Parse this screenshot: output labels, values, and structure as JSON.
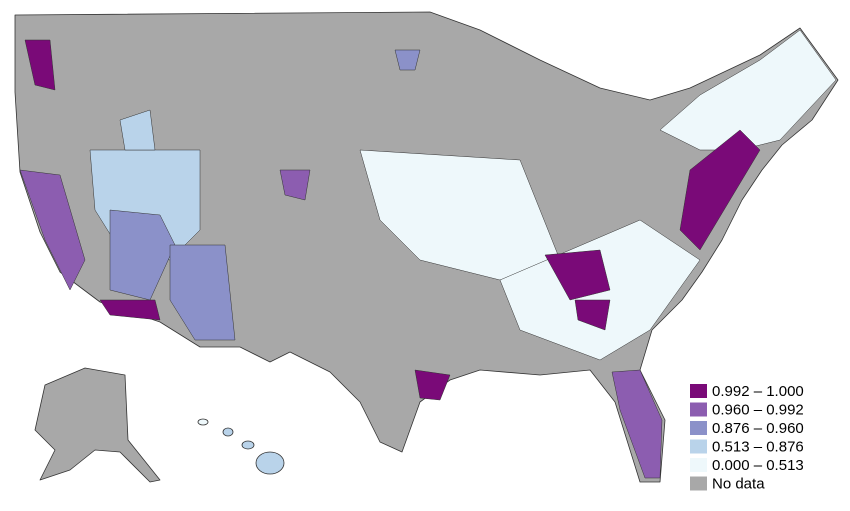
{
  "legend": {
    "items": [
      {
        "label": "0.992 – 1.000",
        "color": "#7a0a78"
      },
      {
        "label": "0.960 – 0.992",
        "color": "#8c5db0"
      },
      {
        "label": "0.876 – 0.960",
        "color": "#8b91c9"
      },
      {
        "label": "0.513 – 0.876",
        "color": "#b9d3ea"
      },
      {
        "label": "0.000 – 0.513",
        "color": "#eef8fb"
      },
      {
        "label": "No data",
        "color": "#a8a8a8"
      }
    ]
  }
}
